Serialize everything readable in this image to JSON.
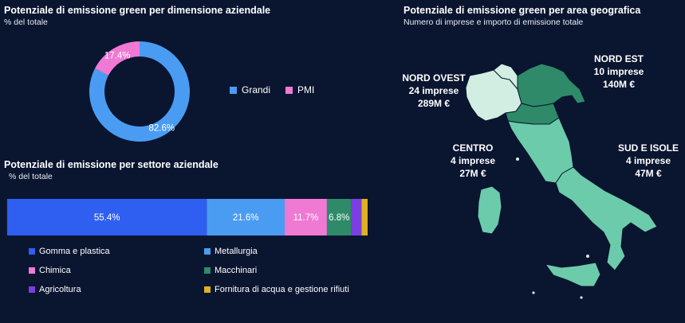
{
  "donut": {
    "title": "Potenziale di emissione green per dimensione aziendale",
    "subtitle": "% del totale",
    "legend": [
      {
        "label": "Grandi",
        "color": "#4a9cf2"
      },
      {
        "label": "PMI",
        "color": "#f079d4"
      }
    ]
  },
  "bar": {
    "title": "Potenziale di emissione per settore aziendale",
    "subtitle": "% del totale",
    "legend": [
      {
        "label": "Gomma e plastica",
        "color": "#2f5ff0"
      },
      {
        "label": "Metallurgia",
        "color": "#4a9cf2"
      },
      {
        "label": "Chimica",
        "color": "#f079d4"
      },
      {
        "label": "Macchinari",
        "color": "#2e8a68"
      },
      {
        "label": "Agricoltura",
        "color": "#7b3ee0"
      },
      {
        "label": "Fornitura di acqua e gestione rifiuti",
        "color": "#e0b020"
      }
    ]
  },
  "map": {
    "title": "Potenziale di emissione green per area geografica",
    "subtitle": "Numero di imprese e importo di emissione totale",
    "regions": [
      {
        "name": "NORD OVEST",
        "line1": "24 imprese",
        "line2": "289M €"
      },
      {
        "name": "NORD EST",
        "line1": "10 imprese",
        "line2": "140M €"
      },
      {
        "name": "CENTRO",
        "line1": "4 imprese",
        "line2": "27M €"
      },
      {
        "name": "SUD E ISOLE",
        "line1": "4 imprese",
        "line2": "47M €"
      }
    ],
    "colors": {
      "nord_ovest": "#d2eee2",
      "nord_est": "#2e8a68",
      "centro": "#6ccbaa",
      "sud": "#6ccbaa"
    }
  },
  "chart_data": [
    {
      "type": "pie",
      "title": "Potenziale di emissione green per dimensione aziendale",
      "subtitle": "% del totale",
      "categories": [
        "Grandi",
        "PMI"
      ],
      "values": [
        82.6,
        17.4
      ],
      "labels": [
        "82.6%",
        "17.4%"
      ]
    },
    {
      "type": "bar",
      "title": "Potenziale di emissione per settore aziendale",
      "subtitle": "% del totale",
      "orientation": "horizontal-stacked",
      "categories": [
        "Gomma e plastica",
        "Metallurgia",
        "Chimica",
        "Macchinari",
        "Agricoltura",
        "Fornitura di acqua e gestione rifiuti"
      ],
      "values": [
        55.4,
        21.6,
        11.7,
        6.8,
        2.8,
        1.7
      ],
      "labels": [
        "55.4%",
        "21.6%",
        "11.7%",
        "6.8%",
        "",
        ""
      ]
    }
  ]
}
